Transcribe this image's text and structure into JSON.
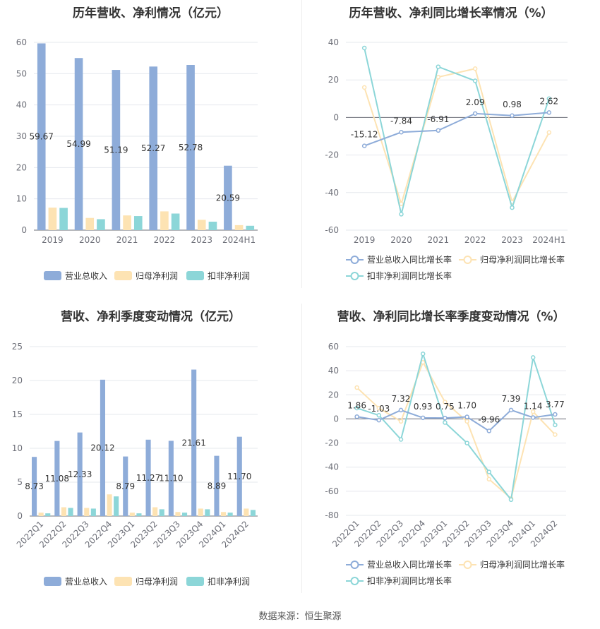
{
  "colors": {
    "revenue": "#8eacd9",
    "parent_net": "#fde3b3",
    "deducted_net": "#8cd6d8",
    "grid": "#e6e8ee",
    "axis": "#6e7079"
  },
  "source": "数据来源：恒生聚源",
  "chart_data": [
    {
      "type": "bar",
      "title": "历年营收、净利情况（亿元）",
      "categories": [
        "2019",
        "2020",
        "2021",
        "2022",
        "2023",
        "2024H1"
      ],
      "ylim": [
        0,
        60
      ],
      "yticks": [
        0,
        10,
        20,
        30,
        40,
        50,
        60
      ],
      "legend": "bottom",
      "grid": true,
      "series": [
        {
          "name": "营业总收入",
          "values": [
            59.67,
            54.99,
            51.19,
            52.27,
            52.78,
            20.59
          ],
          "labels": [
            "59.67",
            "54.99",
            "51.19",
            "52.27",
            "52.78",
            "20.59"
          ]
        },
        {
          "name": "归母净利润",
          "values": [
            7.2,
            3.9,
            4.7,
            6.0,
            3.3,
            1.6
          ]
        },
        {
          "name": "扣非净利润",
          "values": [
            7.1,
            3.5,
            4.5,
            5.3,
            2.7,
            1.4
          ]
        }
      ]
    },
    {
      "type": "line",
      "title": "历年营收、净利同比增长率情况（%）",
      "categories": [
        "2019",
        "2020",
        "2021",
        "2022",
        "2023",
        "2024H1"
      ],
      "ylim": [
        -60,
        40
      ],
      "yticks": [
        -60,
        -40,
        -20,
        0,
        20,
        40
      ],
      "legend": "bottom",
      "grid": true,
      "series": [
        {
          "name": "营业总收入同比增长率",
          "values": [
            -15.12,
            -7.84,
            -6.91,
            2.09,
            0.98,
            2.62
          ],
          "labels": [
            "-15.12",
            "-7.84",
            "-6.91",
            "2.09",
            "0.98",
            "2.62"
          ]
        },
        {
          "name": "归母净利润同比增长率",
          "values": [
            16,
            -46,
            21.5,
            26,
            -45,
            -8
          ]
        },
        {
          "name": "扣非净利润同比增长率",
          "values": [
            37,
            -51.5,
            27,
            19.5,
            -48,
            10
          ]
        }
      ]
    },
    {
      "type": "bar",
      "title": "营收、净利季度变动情况（亿元）",
      "categories": [
        "2022Q1",
        "2022Q2",
        "2022Q3",
        "2022Q4",
        "2023Q1",
        "2023Q2",
        "2023Q3",
        "2023Q4",
        "2024Q1",
        "2024Q2"
      ],
      "ylim": [
        0,
        25
      ],
      "yticks": [
        0,
        5,
        10,
        15,
        20,
        25
      ],
      "legend": "bottom",
      "grid": true,
      "series": [
        {
          "name": "营业总收入",
          "values": [
            8.73,
            11.08,
            12.33,
            20.12,
            8.79,
            11.27,
            11.1,
            21.61,
            8.89,
            11.7
          ],
          "labels": [
            "8.73",
            "11.08",
            "12.33",
            "20.12",
            "8.79",
            "11.27",
            "11.10",
            "21.61",
            "8.89",
            "11.70"
          ]
        },
        {
          "name": "归母净利润",
          "values": [
            0.5,
            1.3,
            1.2,
            3.2,
            0.5,
            1.3,
            0.6,
            1.1,
            0.6,
            1.1
          ]
        },
        {
          "name": "扣非净利润",
          "values": [
            0.4,
            1.2,
            1.1,
            2.9,
            0.4,
            1.0,
            0.5,
            1.0,
            0.5,
            0.9
          ]
        }
      ]
    },
    {
      "type": "line",
      "title": "营收、净利同比增长率季度变动情况（%）",
      "categories": [
        "2022Q1",
        "2022Q2",
        "2022Q3",
        "2022Q4",
        "2023Q1",
        "2023Q2",
        "2023Q3",
        "2023Q4",
        "2024Q1",
        "2024Q2"
      ],
      "ylim": [
        -80,
        60
      ],
      "yticks": [
        -80,
        -60,
        -40,
        -20,
        0,
        20,
        40,
        60
      ],
      "legend": "bottom",
      "grid": true,
      "series": [
        {
          "name": "营业总收入同比增长率",
          "values": [
            1.86,
            -1.03,
            7.32,
            0.93,
            0.75,
            1.7,
            -9.96,
            7.39,
            1.14,
            3.77
          ],
          "labels": [
            "1.86",
            "-1.03",
            "7.32",
            "0.93",
            "0.75",
            "1.70",
            "-9.96",
            "7.39",
            "1.14",
            "3.77"
          ]
        },
        {
          "name": "归母净利润同比增长率",
          "values": [
            26,
            9,
            -2,
            47,
            14,
            -2,
            -50,
            -66,
            6,
            -13
          ]
        },
        {
          "name": "扣非净利润同比增长率",
          "values": [
            9,
            3,
            -17,
            54,
            -3,
            -20,
            -44,
            -67,
            51,
            -5
          ]
        }
      ]
    }
  ]
}
